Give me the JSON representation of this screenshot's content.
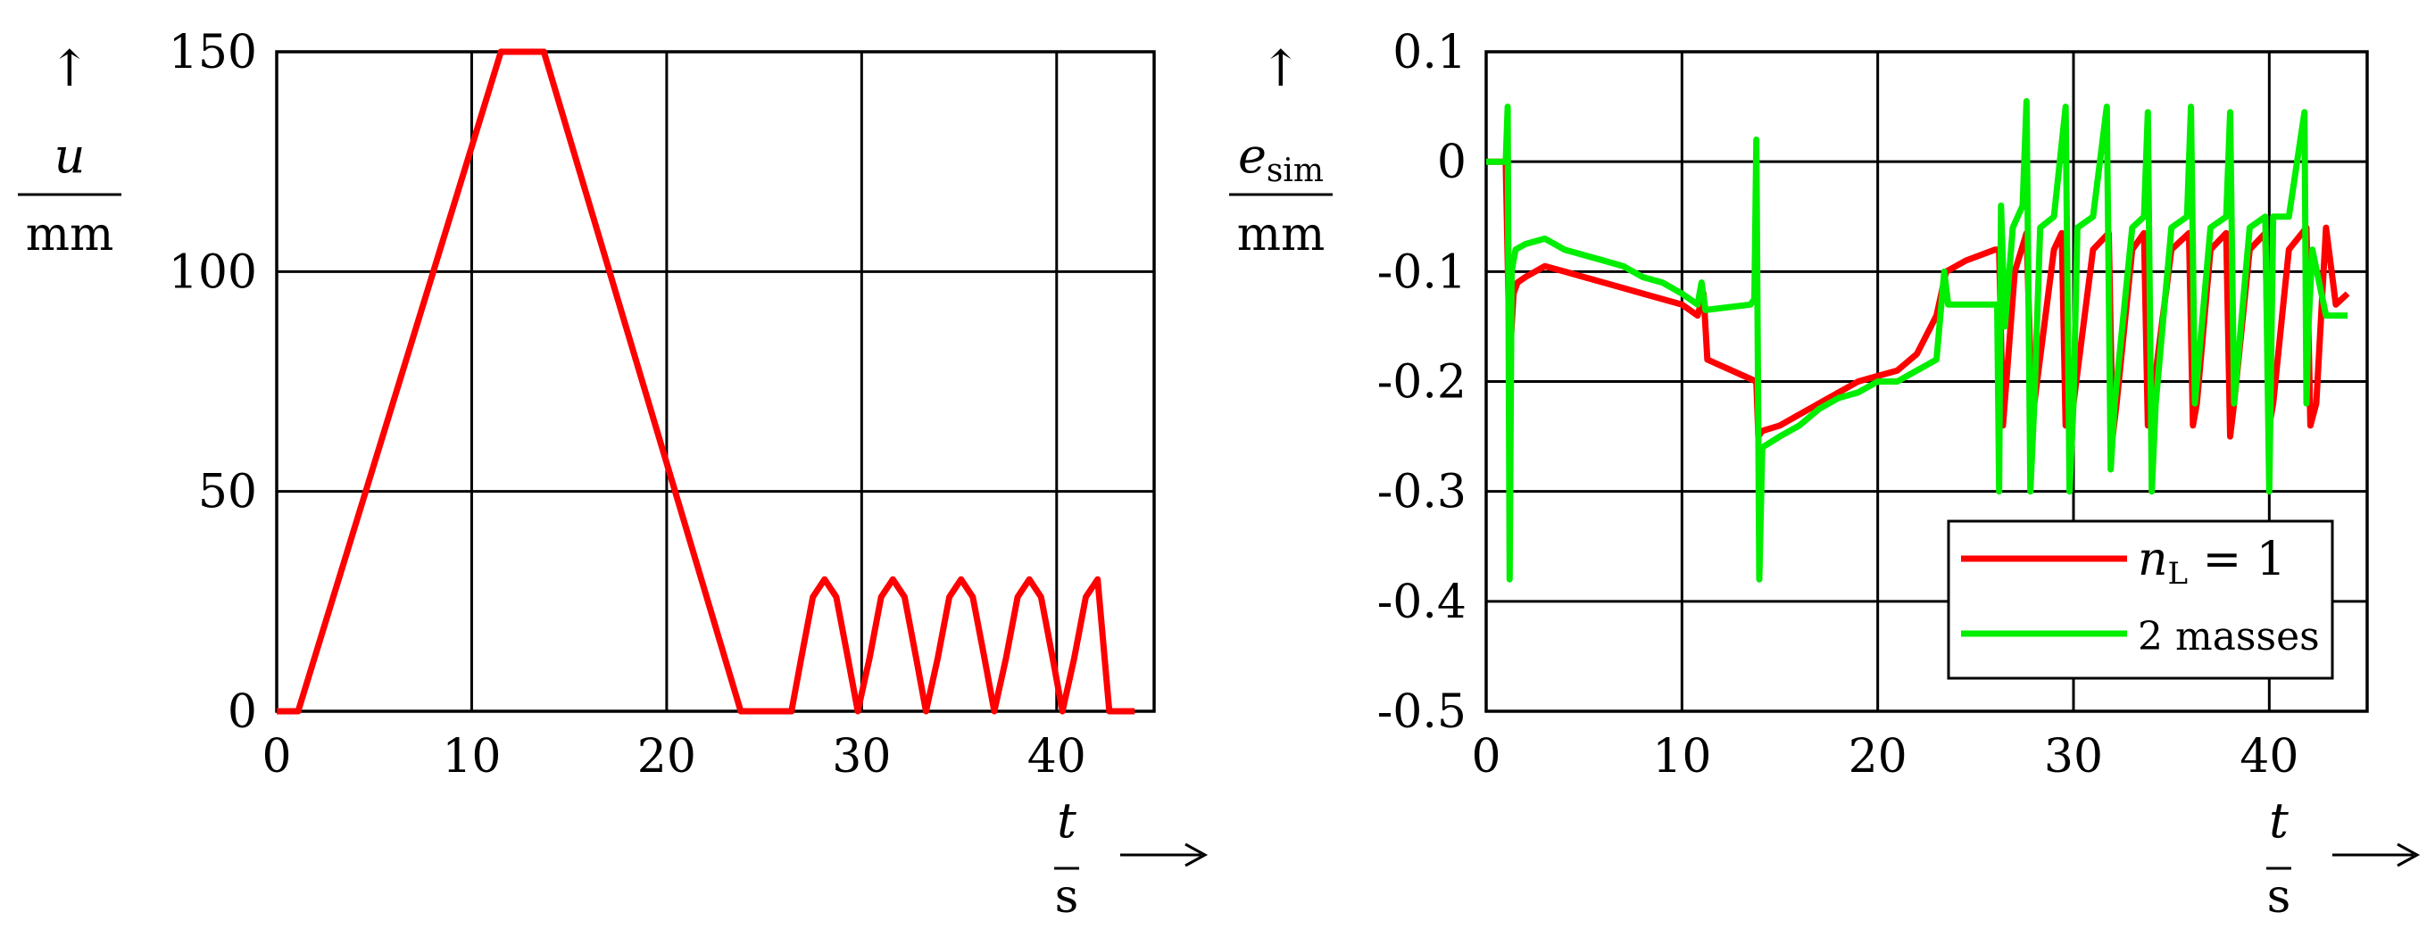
{
  "chart_data": [
    {
      "type": "line",
      "title": "",
      "xlabel": "t / s",
      "ylabel": "u / mm",
      "x_label_var": "t",
      "x_label_unit": "s",
      "y_label_var": "u",
      "y_label_unit": "mm",
      "xlim": [
        0,
        45
      ],
      "ylim": [
        0,
        150
      ],
      "xticks": [
        "0",
        "10",
        "20",
        "30",
        "40"
      ],
      "yticks": [
        "0",
        "50",
        "100",
        "150"
      ],
      "grid": true,
      "series": [
        {
          "color": "#ff0000",
          "x": [
            0,
            1.1,
            11.5,
            13.7,
            23.8,
            26.4,
            26.9,
            27.5,
            28.1,
            28.7,
            29.3,
            29.8,
            30.4,
            31.0,
            31.6,
            32.2,
            32.8,
            33.3,
            33.9,
            34.5,
            35.1,
            35.7,
            36.3,
            36.8,
            37.4,
            38.0,
            38.6,
            39.2,
            39.8,
            40.3,
            40.9,
            41.5,
            42.1,
            42.7,
            44.0
          ],
          "y": [
            0,
            0,
            150,
            150,
            0,
            0,
            12,
            26,
            30,
            26,
            12,
            0,
            12,
            26,
            30,
            26,
            12,
            0,
            12,
            26,
            30,
            26,
            12,
            0,
            12,
            26,
            30,
            26,
            12,
            0,
            12,
            26,
            30,
            0,
            0
          ]
        }
      ]
    },
    {
      "type": "line",
      "title": "",
      "xlabel": "t / s",
      "ylabel": "e_sim / mm",
      "x_label_var": "t",
      "x_label_unit": "s",
      "y_label_var": "e",
      "y_label_sub": "sim",
      "y_label_unit": "mm",
      "xlim": [
        0,
        45
      ],
      "ylim": [
        -0.5,
        0.1
      ],
      "xticks": [
        "0",
        "10",
        "20",
        "30",
        "40"
      ],
      "yticks": [
        "-0.5",
        "-0.4",
        "-0.3",
        "-0.2",
        "-0.1",
        "0",
        "0.1"
      ],
      "grid": true,
      "legend_position": "bottom-right",
      "series": [
        {
          "name": "n_L = 1",
          "legend_var": "n",
          "legend_sub": "L",
          "legend_rest": " = 1",
          "color": "#ff0000",
          "x": [
            0,
            1.0,
            1.2,
            1.4,
            1.6,
            2,
            3,
            4,
            5,
            6,
            7,
            8,
            9,
            10,
            10.8,
            11.1,
            11.3,
            13.8,
            13.9,
            14.1,
            15,
            16,
            17,
            18,
            19,
            20,
            21,
            22,
            23,
            23.5,
            24.5,
            26,
            26.2,
            26.4,
            27,
            27.6,
            27.8,
            28,
            29,
            29.4,
            29.6,
            30,
            31,
            31.8,
            32.0,
            32.2,
            33,
            33.6,
            33.8,
            34,
            35,
            35.9,
            36.1,
            36.3,
            37,
            37.8,
            38.0,
            38.2,
            39,
            39.8,
            40.0,
            40.2,
            41,
            41.9,
            42.1,
            42.4,
            42.9,
            43.4,
            44.0
          ],
          "y": [
            0,
            0,
            -0.18,
            -0.12,
            -0.11,
            -0.105,
            -0.095,
            -0.1,
            -0.105,
            -0.11,
            -0.115,
            -0.12,
            -0.125,
            -0.13,
            -0.14,
            -0.12,
            -0.18,
            -0.2,
            -0.25,
            -0.245,
            -0.24,
            -0.23,
            -0.22,
            -0.21,
            -0.2,
            -0.195,
            -0.19,
            -0.175,
            -0.14,
            -0.1,
            -0.09,
            -0.08,
            -0.08,
            -0.24,
            -0.1,
            -0.065,
            -0.18,
            -0.22,
            -0.08,
            -0.065,
            -0.24,
            -0.22,
            -0.08,
            -0.065,
            -0.25,
            -0.22,
            -0.08,
            -0.065,
            -0.24,
            -0.22,
            -0.08,
            -0.065,
            -0.24,
            -0.22,
            -0.08,
            -0.065,
            -0.25,
            -0.22,
            -0.08,
            -0.065,
            -0.24,
            -0.22,
            -0.08,
            -0.06,
            -0.24,
            -0.22,
            -0.06,
            -0.13,
            -0.12
          ]
        },
        {
          "name": "2 masses",
          "color": "#00ee00",
          "x": [
            0,
            0.9,
            1.0,
            1.1,
            1.2,
            1.3,
            1.5,
            2,
            3,
            4,
            5,
            6,
            7,
            8,
            9,
            10,
            10.8,
            11.0,
            11.2,
            13.5,
            13.7,
            13.8,
            13.95,
            14.1,
            15,
            16,
            17,
            18,
            19,
            20,
            21,
            22,
            23,
            23.4,
            23.6,
            24,
            25,
            26.1,
            26.2,
            26.3,
            26.5,
            26.9,
            27.4,
            27.6,
            27.8,
            28.0,
            28.3,
            29,
            29.6,
            29.8,
            30.0,
            30.2,
            31,
            31.7,
            31.9,
            32.1,
            33,
            33.6,
            33.8,
            34.0,
            34.2,
            35,
            35.8,
            36.0,
            36.2,
            37,
            37.8,
            38.0,
            38.2,
            39,
            39.8,
            40.0,
            40.2,
            41,
            41.8,
            41.9,
            42.0,
            42.2,
            42.9,
            43.4,
            44.0
          ],
          "y": [
            0,
            0,
            0,
            0.05,
            -0.38,
            -0.1,
            -0.08,
            -0.075,
            -0.07,
            -0.08,
            -0.085,
            -0.09,
            -0.095,
            -0.105,
            -0.11,
            -0.12,
            -0.13,
            -0.11,
            -0.135,
            -0.13,
            -0.125,
            0.02,
            -0.38,
            -0.26,
            -0.25,
            -0.24,
            -0.225,
            -0.215,
            -0.21,
            -0.2,
            -0.2,
            -0.19,
            -0.18,
            -0.1,
            -0.13,
            -0.13,
            -0.13,
            -0.13,
            -0.3,
            -0.04,
            -0.15,
            -0.06,
            -0.04,
            0.055,
            -0.3,
            -0.22,
            -0.06,
            -0.05,
            0.05,
            -0.3,
            -0.22,
            -0.06,
            -0.05,
            0.05,
            -0.28,
            -0.22,
            -0.06,
            -0.05,
            0.045,
            -0.3,
            -0.22,
            -0.06,
            -0.05,
            0.05,
            -0.22,
            -0.06,
            -0.05,
            0.045,
            -0.22,
            -0.06,
            -0.05,
            -0.3,
            -0.05,
            -0.05,
            0.045,
            -0.22,
            -0.15,
            -0.08,
            -0.14,
            -0.14,
            -0.14
          ]
        }
      ]
    }
  ]
}
